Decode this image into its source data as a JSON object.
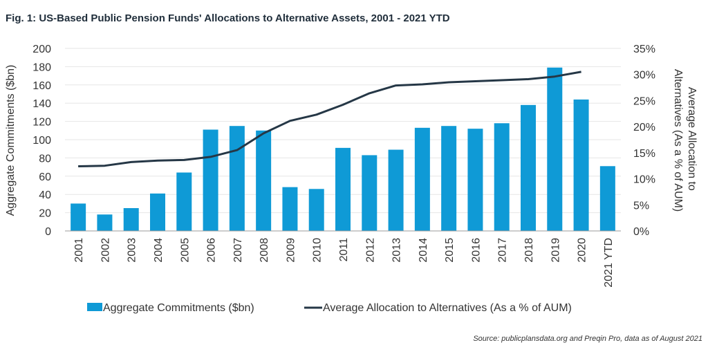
{
  "title": "Fig. 1: US-Based Public Pension Funds' Allocations to Alternative Assets, 2001 - 2021 YTD",
  "source": "Source: publicplansdata.org and Preqin Pro, data as of August 2021",
  "colors": {
    "bar": "#0F9AD6",
    "line": "#253746",
    "grid": "#e6e6e6"
  },
  "chart_data": {
    "type": "bar",
    "categories": [
      "2001",
      "2002",
      "2003",
      "2004",
      "2005",
      "2006",
      "2007",
      "2008",
      "2009",
      "2010",
      "2011",
      "2012",
      "2013",
      "2014",
      "2015",
      "2016",
      "2017",
      "2018",
      "2019",
      "2020",
      "2021 YTD"
    ],
    "series": [
      {
        "name": "Aggregate Commitments ($bn)",
        "type": "bar",
        "axis": "left",
        "values": [
          30,
          18,
          25,
          41,
          64,
          111,
          115,
          110,
          48,
          46,
          91,
          83,
          89,
          113,
          115,
          112,
          118,
          138,
          179,
          144,
          71
        ]
      },
      {
        "name": "Average Allocation to Alternatives (As a % of AUM)",
        "type": "line",
        "axis": "right",
        "values": [
          12.4,
          12.5,
          13.2,
          13.5,
          13.6,
          14.2,
          15.5,
          18.7,
          21.1,
          22.3,
          24.2,
          26.4,
          27.9,
          28.1,
          28.5,
          28.7,
          28.9,
          29.1,
          29.6,
          30.5,
          null
        ]
      }
    ],
    "ylabel_left": "Aggregate Commitments ($bn)",
    "ylabel_right": "Average Allocation to Alternatives (As a % of AUM)",
    "ylabel_right_lines": [
      "Average Allocation to",
      "Alternatives (As a % of AUM)"
    ],
    "ylim_left": [
      0,
      200
    ],
    "ylim_right": [
      0,
      35
    ],
    "yticks_left": [
      "0",
      "20",
      "40",
      "60",
      "80",
      "100",
      "120",
      "140",
      "160",
      "180",
      "200"
    ],
    "yticks_right": [
      "0%",
      "5%",
      "10%",
      "15%",
      "20%",
      "25%",
      "30%",
      "35%"
    ],
    "grid": true,
    "legend": "bottom"
  }
}
